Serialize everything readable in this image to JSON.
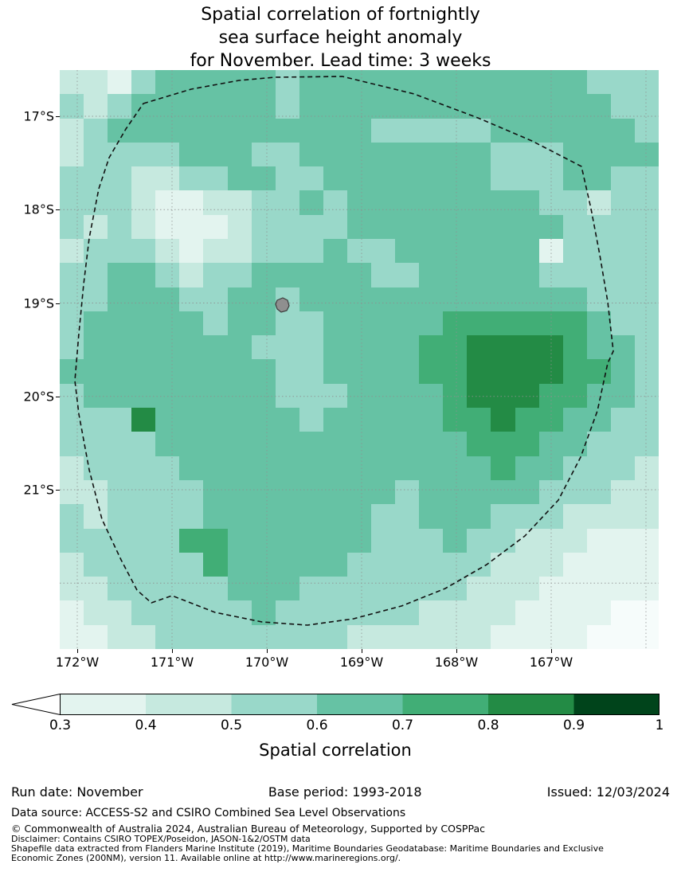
{
  "title": {
    "line1": "Spatial correlation of fortnightly",
    "line2": "sea surface height anomaly",
    "line3": "for November. Lead time: 3 weeks"
  },
  "chart_data": {
    "type": "heatmap",
    "title": "Spatial correlation of fortnightly sea surface height anomaly for November. Lead time: 3 weeks",
    "x_tick_labels": [
      "172°W",
      "171°W",
      "170°W",
      "169°W",
      "168°W",
      "167°W"
    ],
    "y_tick_labels": [
      "17°S",
      "18°S",
      "19°S",
      "20°S",
      "21°S"
    ],
    "colorbar": {
      "label": "Spatial correlation",
      "tick_labels": [
        "0.3",
        "0.4",
        "0.5",
        "0.6",
        "0.7",
        "0.8",
        "0.9",
        "1"
      ],
      "bin_edges": [
        0.3,
        0.4,
        0.5,
        0.6,
        0.7,
        0.8,
        0.9,
        1.0
      ],
      "bin_colors": [
        "#e3f4ef",
        "#c6e9df",
        "#99d8c9",
        "#66c2a4",
        "#41ae76",
        "#238b45",
        "#00441b"
      ],
      "under_arrow_color": "#ffffff"
    },
    "grid": {
      "ncols": 25,
      "nrows": 24,
      "legend": {
        "0": "<0.3",
        "1": "0.3-0.4",
        "2": "0.4-0.5",
        "3": "0.5-0.6",
        "4": "0.6-0.7",
        "5": "0.7-0.8",
        "6": "0.8-0.9",
        "7": "0.9-1.0"
      },
      "cell_colors": {
        "0": "#f6fcfb",
        "1": "#e3f4ef",
        "2": "#c6e9df",
        "3": "#99d8c9",
        "4": "#66c2a4",
        "5": "#41ae76",
        "6": "#238b45",
        "7": "#00441b"
      },
      "rows": [
        "2213444443444444444444333",
        "3234444443444444444444433",
        "2344444444444333334444443",
        "2333344433444444443334444",
        "3332233443344444443334433",
        "3332112233434444444433233",
        "3232111233334444444443333",
        "2333212233343344444413333",
        "3344323344444334444433333",
        "3344433443444444444444333",
        "3444443443344444555555433",
        "3444444433344445566665443",
        "4444444443344445566665543",
        "3444444443334444566655443",
        "3336444444344444556554433",
        "3333444444444444455544333",
        "2333344444444444445443332",
        "2233334444444434444433322",
        "3233334444444334443332222",
        "3333355444444333433222111",
        "2333335444443333332221111",
        "2233333444333333322211111",
        "1223333343333332222111100",
        "1122333333332222221111000"
      ]
    }
  },
  "footer": {
    "run_date": "Run date: November",
    "base_period": "Base period: 1993-2018",
    "issued": "Issued: 12/03/2024",
    "data_source": "Data source: ACCESS-S2 and CSIRO Combined Sea Level Observations",
    "copyright": "© Commonwealth of Australia 2024, Australian Bureau of Meteorology, Supported by COSPPac",
    "disclaimer": "Disclaimer: Contains CSIRO TOPEX/Poseidon, JASON-1&2/OSTM data",
    "shapefile_line1": "Shapefile data extracted from Flanders Marine Institute (2019), Maritime Boundaries Geodatabase: Maritime Boundaries and Exclusive",
    "shapefile_line2": "Economic Zones (200NM), version 11. Available online at http://www.marineregions.org/."
  }
}
